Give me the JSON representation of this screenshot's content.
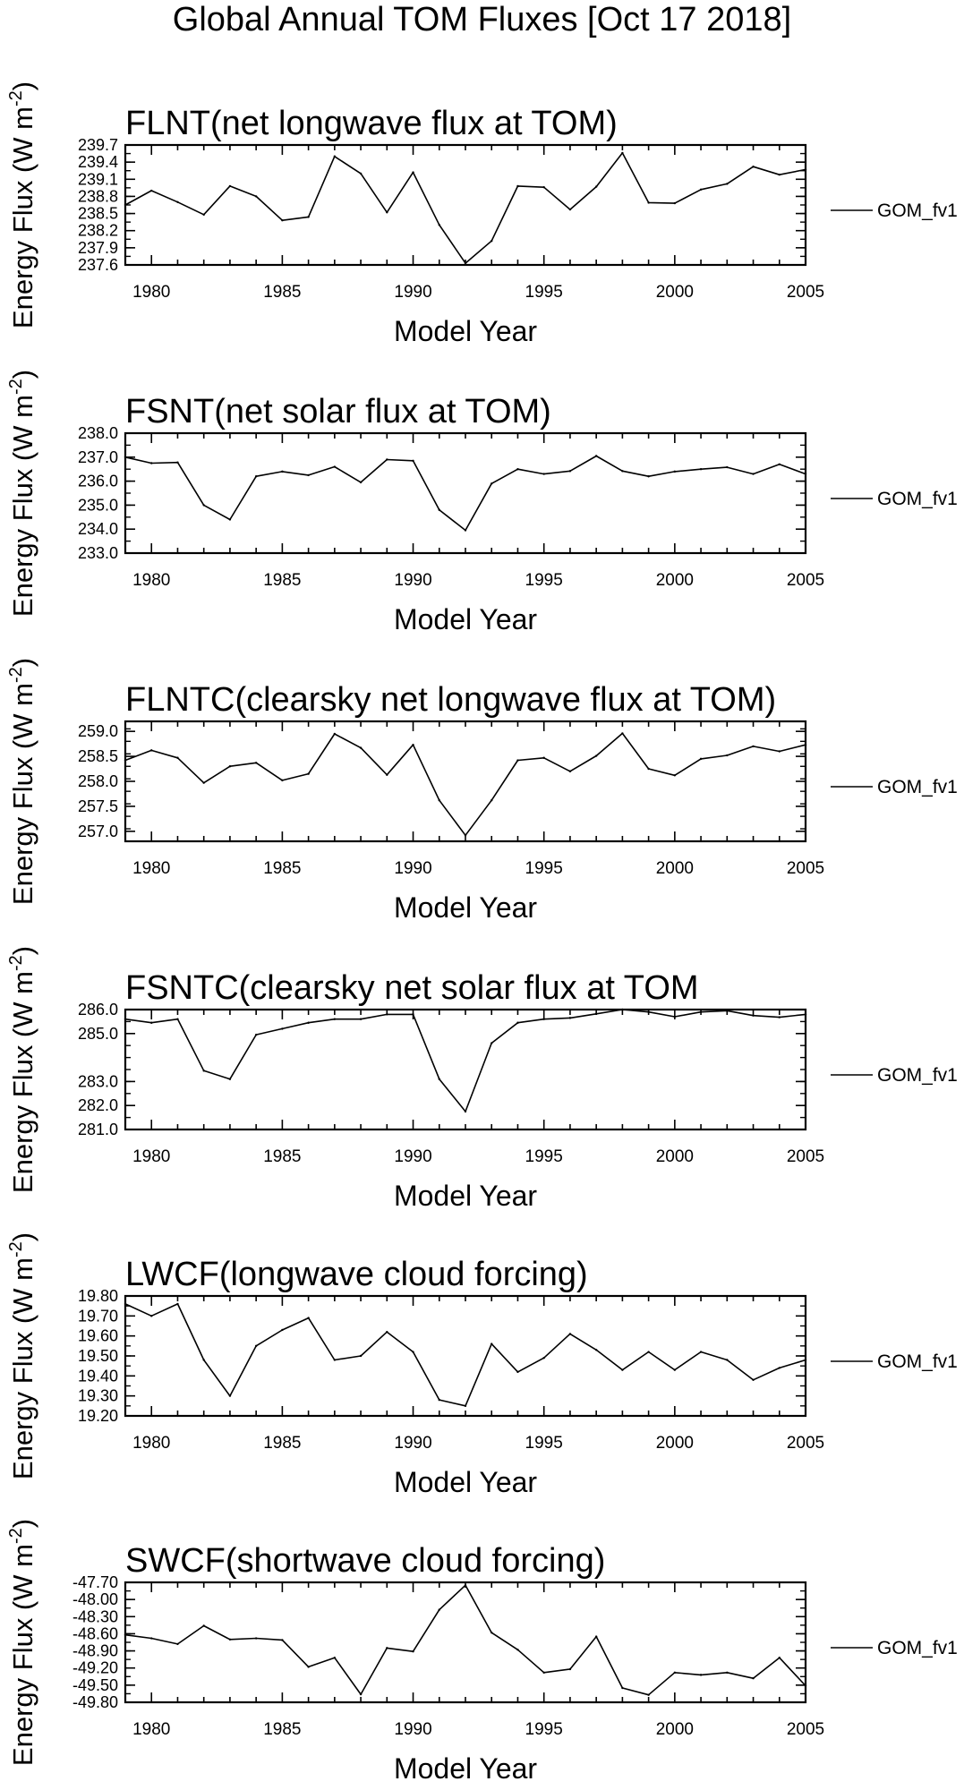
{
  "page": {
    "title": "Global Annual TOM Fluxes [Oct 17 2018]"
  },
  "chart_data": [
    {
      "type": "line",
      "title": "FLNT(net longwave flux at TOM)",
      "xlabel": "Model Year",
      "ylabel": "Energy Flux (W m-2)",
      "xlim": [
        1979,
        2005
      ],
      "xticks": [
        1980,
        1985,
        1990,
        1995,
        2000,
        2005
      ],
      "ylim": [
        237.6,
        239.7
      ],
      "yticks": [
        "239.7",
        "239.4",
        "239.1",
        "238.8",
        "238.5",
        "238.2",
        "237.9",
        "237.6"
      ],
      "grid": false,
      "legend_position": "right",
      "x": [
        1979,
        1980,
        1981,
        1982,
        1983,
        1984,
        1985,
        1986,
        1987,
        1988,
        1989,
        1990,
        1991,
        1992,
        1993,
        1994,
        1995,
        1996,
        1997,
        1998,
        1999,
        2000,
        2001,
        2002,
        2003,
        2004,
        2005
      ],
      "series": [
        {
          "name": "GOM_fv1",
          "values": [
            238.65,
            238.9,
            238.7,
            238.48,
            238.98,
            238.8,
            238.38,
            238.44,
            239.5,
            239.2,
            238.52,
            239.22,
            238.3,
            237.63,
            238.02,
            238.98,
            238.96,
            238.57,
            238.97,
            239.56,
            238.69,
            238.68,
            238.92,
            239.02,
            239.32,
            239.18,
            239.27
          ]
        }
      ]
    },
    {
      "type": "line",
      "title": "FSNT(net solar flux at TOM)",
      "xlabel": "Model Year",
      "ylabel": "Energy Flux (W m-2)",
      "xlim": [
        1979,
        2005
      ],
      "xticks": [
        1980,
        1985,
        1990,
        1995,
        2000,
        2005
      ],
      "ylim": [
        233.0,
        238.0
      ],
      "yticks": [
        "238.0",
        "237.0",
        "236.0",
        "235.0",
        "234.0",
        "233.0"
      ],
      "grid": false,
      "legend_position": "right",
      "x": [
        1979,
        1980,
        1981,
        1982,
        1983,
        1984,
        1985,
        1986,
        1987,
        1988,
        1989,
        1990,
        1991,
        1992,
        1993,
        1994,
        1995,
        1996,
        1997,
        1998,
        1999,
        2000,
        2001,
        2002,
        2003,
        2004,
        2005
      ],
      "series": [
        {
          "name": "GOM_fv1",
          "values": [
            237.0,
            236.75,
            236.78,
            235.0,
            234.4,
            236.2,
            236.4,
            236.25,
            236.6,
            235.95,
            236.9,
            236.85,
            234.8,
            233.95,
            235.9,
            236.5,
            236.3,
            236.42,
            237.05,
            236.42,
            236.2,
            236.4,
            236.5,
            236.58,
            236.3,
            236.7,
            236.3
          ]
        }
      ]
    },
    {
      "type": "line",
      "title": "FLNTC(clearsky net longwave flux at TOM)",
      "xlabel": "Model Year",
      "ylabel": "Energy Flux (W m-2)",
      "xlim": [
        1979,
        2005
      ],
      "xticks": [
        1980,
        1985,
        1990,
        1995,
        2000,
        2005
      ],
      "ylim": [
        256.8,
        259.2
      ],
      "yticks": [
        "259.0",
        "258.5",
        "258.0",
        "257.5",
        "257.0"
      ],
      "grid": false,
      "legend_position": "right",
      "x": [
        1979,
        1980,
        1981,
        1982,
        1983,
        1984,
        1985,
        1986,
        1987,
        1988,
        1989,
        1990,
        1991,
        1992,
        1993,
        1994,
        1995,
        1996,
        1997,
        1998,
        1999,
        2000,
        2001,
        2002,
        2003,
        2004,
        2005
      ],
      "series": [
        {
          "name": "GOM_fv1",
          "values": [
            258.42,
            258.62,
            258.47,
            257.97,
            258.3,
            258.37,
            258.02,
            258.15,
            258.95,
            258.67,
            258.13,
            258.73,
            257.62,
            256.92,
            257.62,
            258.42,
            258.47,
            258.2,
            258.51,
            258.96,
            258.25,
            258.12,
            258.45,
            258.52,
            258.7,
            258.6,
            258.73
          ]
        }
      ]
    },
    {
      "type": "line",
      "title": "FSNTC(clearsky net solar flux at TOM",
      "xlabel": "Model Year",
      "ylabel": "Energy Flux (W m-2)",
      "xlim": [
        1979,
        2005
      ],
      "xticks": [
        1980,
        1985,
        1990,
        1995,
        2000,
        2005
      ],
      "ylim": [
        281.0,
        286.0
      ],
      "yticks": [
        "286.0",
        "285.0",
        "283.0",
        "282.0",
        "281.0"
      ],
      "ytick_values": [
        286.0,
        285.0,
        283.0,
        282.0,
        281.0
      ],
      "grid": false,
      "legend_position": "right",
      "x": [
        1979,
        1980,
        1981,
        1982,
        1983,
        1984,
        1985,
        1986,
        1987,
        1988,
        1989,
        1990,
        1991,
        1992,
        1993,
        1994,
        1995,
        1996,
        1997,
        1998,
        1999,
        2000,
        2001,
        2002,
        2003,
        2004,
        2005
      ],
      "series": [
        {
          "name": "GOM_fv1",
          "values": [
            285.6,
            285.45,
            285.6,
            283.45,
            283.1,
            284.95,
            285.2,
            285.45,
            285.6,
            285.6,
            285.8,
            285.8,
            283.1,
            281.75,
            284.6,
            285.45,
            285.6,
            285.65,
            285.82,
            286.0,
            285.9,
            285.7,
            285.9,
            285.95,
            285.75,
            285.68,
            285.8
          ]
        }
      ]
    },
    {
      "type": "line",
      "title": "LWCF(longwave cloud forcing)",
      "xlabel": "Model Year",
      "ylabel": "Energy Flux (W m-2)",
      "xlim": [
        1979,
        2005
      ],
      "xticks": [
        1980,
        1985,
        1990,
        1995,
        2000,
        2005
      ],
      "ylim": [
        19.2,
        19.8
      ],
      "yticks": [
        "19.80",
        "19.70",
        "19.60",
        "19.50",
        "19.40",
        "19.30",
        "19.20"
      ],
      "grid": false,
      "legend_position": "right",
      "x": [
        1979,
        1980,
        1981,
        1982,
        1983,
        1984,
        1985,
        1986,
        1987,
        1988,
        1989,
        1990,
        1991,
        1992,
        1993,
        1994,
        1995,
        1996,
        1997,
        1998,
        1999,
        2000,
        2001,
        2002,
        2003,
        2004,
        2005
      ],
      "series": [
        {
          "name": "GOM_fv1",
          "values": [
            19.76,
            19.7,
            19.76,
            19.48,
            19.3,
            19.55,
            19.63,
            19.69,
            19.48,
            19.5,
            19.62,
            19.52,
            19.28,
            19.25,
            19.56,
            19.42,
            19.49,
            19.61,
            19.53,
            19.43,
            19.52,
            19.43,
            19.52,
            19.48,
            19.38,
            19.44,
            19.48
          ]
        }
      ]
    },
    {
      "type": "line",
      "title": "SWCF(shortwave cloud forcing)",
      "xlabel": "Model Year",
      "ylabel": "Energy Flux (W m-2)",
      "xlim": [
        1979,
        2005
      ],
      "xticks": [
        1980,
        1985,
        1990,
        1995,
        2000,
        2005
      ],
      "ylim": [
        -49.8,
        -47.7
      ],
      "yticks": [
        "-47.70",
        "-48.00",
        "-48.30",
        "-48.60",
        "-48.90",
        "-49.20",
        "-49.50",
        "-49.80"
      ],
      "grid": false,
      "legend_position": "right",
      "x": [
        1979,
        1980,
        1981,
        1982,
        1983,
        1984,
        1985,
        1986,
        1987,
        1988,
        1989,
        1990,
        1991,
        1992,
        1993,
        1994,
        1995,
        1996,
        1997,
        1998,
        1999,
        2000,
        2001,
        2002,
        2003,
        2004,
        2005
      ],
      "series": [
        {
          "name": "GOM_fv1",
          "values": [
            -48.62,
            -48.68,
            -48.78,
            -48.46,
            -48.7,
            -48.68,
            -48.71,
            -49.18,
            -49.02,
            -49.66,
            -48.85,
            -48.91,
            -48.18,
            -47.75,
            -48.58,
            -48.88,
            -49.28,
            -49.22,
            -48.65,
            -49.55,
            -49.67,
            -49.28,
            -49.32,
            -49.28,
            -49.38,
            -49.02,
            -49.51
          ]
        }
      ]
    }
  ]
}
